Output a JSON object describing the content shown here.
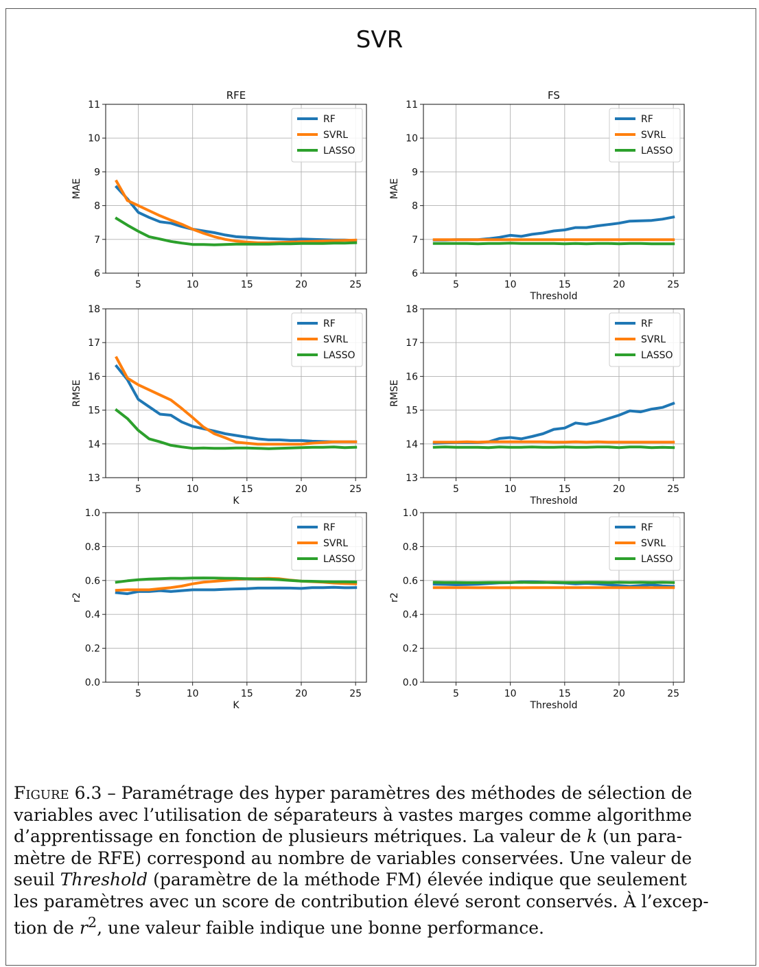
{
  "figure": {
    "title": "SVR",
    "caption": {
      "label": "Figure 6.3",
      "lines": [
        {
          "label": true,
          "text": " – Paramétrage des hyper paramètres des méthodes de sélection de"
        },
        {
          "text": "variables avec l’utilisation de séparateurs à vastes marges comme algorithme"
        },
        {
          "pre": "d’apprentissage en fonction de plusieurs métriques. La valeur de ",
          "ital": "k",
          "post": " (un para-"
        },
        {
          "text": "mètre de RFE) correspond au nombre de variables conservées. Une valeur de"
        },
        {
          "pre": "seuil ",
          "ital": "Threshold",
          "post": " (paramètre de la méthode FM) élevée indique que seulement"
        },
        {
          "text": "les paramètres avec un score de contribution élevé seront conservés. À l’excep-"
        },
        {
          "pre": "tion de ",
          "ital": "r",
          "sup": "2",
          "post": ", une valeur faible indique une bonne performance."
        }
      ]
    }
  },
  "colors": {
    "RF": "#1f77b4",
    "SVRL": "#ff7f0e",
    "LASSO": "#2ca02c"
  },
  "chart_data": [
    {
      "type": "line",
      "title": "RFE",
      "xlabel": "",
      "ylabel": "MAE",
      "xlim": [
        2,
        26
      ],
      "ylim": [
        6,
        11
      ],
      "xticks": [
        5,
        10,
        15,
        20,
        25
      ],
      "yticks": [
        6,
        7,
        8,
        9,
        10,
        11
      ],
      "ytick_labels": [
        "6",
        "7",
        "8",
        "9",
        "10",
        "11"
      ],
      "grid": true,
      "legend": "top-right",
      "x": [
        3,
        4,
        5,
        6,
        7,
        8,
        9,
        10,
        11,
        12,
        13,
        14,
        15,
        16,
        17,
        18,
        19,
        20,
        21,
        22,
        23,
        24,
        25
      ],
      "series": [
        {
          "name": "RF",
          "values": [
            8.55,
            8.2,
            7.8,
            7.65,
            7.52,
            7.48,
            7.38,
            7.3,
            7.25,
            7.2,
            7.13,
            7.08,
            7.06,
            7.04,
            7.02,
            7.01,
            7.0,
            7.01,
            7.0,
            6.99,
            6.98,
            6.98,
            6.97
          ]
        },
        {
          "name": "SVRL",
          "values": [
            8.72,
            8.15,
            8.0,
            7.85,
            7.7,
            7.57,
            7.45,
            7.3,
            7.18,
            7.08,
            7.0,
            6.95,
            6.92,
            6.9,
            6.9,
            6.91,
            6.92,
            6.93,
            6.94,
            6.95,
            6.96,
            6.97,
            6.98
          ]
        },
        {
          "name": "LASSO",
          "values": [
            7.62,
            7.42,
            7.24,
            7.08,
            7.01,
            6.94,
            6.89,
            6.85,
            6.85,
            6.84,
            6.85,
            6.86,
            6.86,
            6.86,
            6.86,
            6.87,
            6.87,
            6.88,
            6.88,
            6.88,
            6.89,
            6.89,
            6.9
          ]
        }
      ]
    },
    {
      "type": "line",
      "title": "FS",
      "xlabel": "Threshold",
      "ylabel": "MAE",
      "xlim": [
        2,
        26
      ],
      "ylim": [
        6,
        11
      ],
      "xticks": [
        5,
        10,
        15,
        20,
        25
      ],
      "yticks": [
        6,
        7,
        8,
        9,
        10,
        11
      ],
      "ytick_labels": [
        "6",
        "7",
        "8",
        "9",
        "10",
        "11"
      ],
      "grid": true,
      "legend": "top-right",
      "x": [
        3,
        4,
        5,
        6,
        7,
        8,
        9,
        10,
        11,
        12,
        13,
        14,
        15,
        16,
        17,
        18,
        19,
        20,
        21,
        22,
        23,
        24,
        25
      ],
      "series": [
        {
          "name": "RF",
          "values": [
            6.98,
            6.98,
            6.99,
            6.99,
            6.99,
            7.02,
            7.06,
            7.12,
            7.09,
            7.15,
            7.19,
            7.25,
            7.28,
            7.35,
            7.35,
            7.4,
            7.44,
            7.48,
            7.54,
            7.55,
            7.56,
            7.6,
            7.66
          ]
        },
        {
          "name": "SVRL",
          "values": [
            6.99,
            6.99,
            6.99,
            6.99,
            6.99,
            6.99,
            6.99,
            6.99,
            6.99,
            6.99,
            6.99,
            6.99,
            6.99,
            6.99,
            6.99,
            6.99,
            6.99,
            6.99,
            6.99,
            6.99,
            6.99,
            6.99,
            6.99
          ]
        },
        {
          "name": "LASSO",
          "values": [
            6.88,
            6.88,
            6.88,
            6.88,
            6.87,
            6.88,
            6.88,
            6.89,
            6.88,
            6.88,
            6.88,
            6.88,
            6.87,
            6.88,
            6.87,
            6.88,
            6.88,
            6.87,
            6.88,
            6.88,
            6.87,
            6.87,
            6.87
          ]
        }
      ]
    },
    {
      "type": "line",
      "title": "",
      "xlabel": "K",
      "ylabel": "RMSE",
      "xlim": [
        2,
        26
      ],
      "ylim": [
        13,
        18
      ],
      "xticks": [
        5,
        10,
        15,
        20,
        25
      ],
      "yticks": [
        13,
        14,
        15,
        16,
        17,
        18
      ],
      "ytick_labels": [
        "13",
        "14",
        "15",
        "16",
        "17",
        "18"
      ],
      "grid": true,
      "legend": "top-right",
      "x": [
        3,
        4,
        5,
        6,
        7,
        8,
        9,
        10,
        11,
        12,
        13,
        14,
        15,
        16,
        17,
        18,
        19,
        20,
        21,
        22,
        23,
        24,
        25
      ],
      "series": [
        {
          "name": "RF",
          "values": [
            16.3,
            15.9,
            15.32,
            15.1,
            14.88,
            14.85,
            14.65,
            14.52,
            14.45,
            14.38,
            14.3,
            14.25,
            14.2,
            14.15,
            14.12,
            14.12,
            14.1,
            14.1,
            14.08,
            14.07,
            14.06,
            14.06,
            14.06
          ]
        },
        {
          "name": "SVRL",
          "values": [
            16.55,
            15.95,
            15.75,
            15.6,
            15.45,
            15.3,
            15.05,
            14.78,
            14.5,
            14.3,
            14.18,
            14.05,
            14.02,
            13.99,
            13.99,
            13.99,
            13.99,
            13.99,
            14.02,
            14.04,
            14.06,
            14.06,
            14.06
          ]
        },
        {
          "name": "LASSO",
          "values": [
            15.0,
            14.75,
            14.4,
            14.15,
            14.06,
            13.96,
            13.91,
            13.87,
            13.88,
            13.87,
            13.87,
            13.88,
            13.88,
            13.87,
            13.86,
            13.87,
            13.88,
            13.89,
            13.9,
            13.9,
            13.91,
            13.89,
            13.9
          ]
        }
      ]
    },
    {
      "type": "line",
      "title": "",
      "xlabel": "Threshold",
      "ylabel": "RMSE",
      "xlim": [
        2,
        26
      ],
      "ylim": [
        13,
        18
      ],
      "xticks": [
        5,
        10,
        15,
        20,
        25
      ],
      "yticks": [
        13,
        14,
        15,
        16,
        17,
        18
      ],
      "ytick_labels": [
        "13",
        "14",
        "15",
        "16",
        "17",
        "18"
      ],
      "grid": true,
      "legend": "top-right",
      "x": [
        3,
        4,
        5,
        6,
        7,
        8,
        9,
        10,
        11,
        12,
        13,
        14,
        15,
        16,
        17,
        18,
        19,
        20,
        21,
        22,
        23,
        24,
        25
      ],
      "series": [
        {
          "name": "RF",
          "values": [
            14.02,
            14.03,
            14.04,
            14.04,
            14.04,
            14.06,
            14.16,
            14.19,
            14.15,
            14.22,
            14.3,
            14.43,
            14.47,
            14.62,
            14.58,
            14.65,
            14.75,
            14.85,
            14.98,
            14.95,
            15.03,
            15.08,
            15.2
          ]
        },
        {
          "name": "SVRL",
          "values": [
            14.05,
            14.05,
            14.05,
            14.06,
            14.05,
            14.06,
            14.06,
            14.06,
            14.06,
            14.06,
            14.06,
            14.05,
            14.05,
            14.06,
            14.05,
            14.06,
            14.05,
            14.05,
            14.05,
            14.05,
            14.05,
            14.05,
            14.05
          ]
        },
        {
          "name": "LASSO",
          "values": [
            13.9,
            13.91,
            13.9,
            13.9,
            13.9,
            13.89,
            13.91,
            13.9,
            13.9,
            13.91,
            13.9,
            13.9,
            13.91,
            13.9,
            13.9,
            13.91,
            13.91,
            13.89,
            13.91,
            13.91,
            13.89,
            13.9,
            13.89
          ]
        }
      ]
    },
    {
      "type": "line",
      "title": "",
      "xlabel": "K",
      "ylabel": "r2",
      "xlim": [
        2,
        26
      ],
      "ylim": [
        0,
        1
      ],
      "xticks": [
        5,
        10,
        15,
        20,
        25
      ],
      "yticks": [
        0,
        0.2,
        0.4,
        0.6,
        0.8,
        1.0
      ],
      "ytick_labels": [
        "0.0",
        "0.2",
        "0.4",
        "0.6",
        "0.8",
        "1.0"
      ],
      "grid": true,
      "legend": "top-right",
      "x": [
        3,
        4,
        5,
        6,
        7,
        8,
        9,
        10,
        11,
        12,
        13,
        14,
        15,
        16,
        17,
        18,
        19,
        20,
        21,
        22,
        23,
        24,
        25
      ],
      "series": [
        {
          "name": "RF",
          "values": [
            0.528,
            0.522,
            0.535,
            0.535,
            0.54,
            0.535,
            0.54,
            0.545,
            0.545,
            0.545,
            0.548,
            0.55,
            0.552,
            0.555,
            0.555,
            0.556,
            0.555,
            0.553,
            0.558,
            0.558,
            0.56,
            0.557,
            0.558
          ]
        },
        {
          "name": "SVRL",
          "values": [
            0.542,
            0.545,
            0.545,
            0.545,
            0.552,
            0.558,
            0.567,
            0.58,
            0.59,
            0.595,
            0.6,
            0.607,
            0.61,
            0.611,
            0.612,
            0.61,
            0.602,
            0.596,
            0.593,
            0.59,
            0.585,
            0.582,
            0.58
          ]
        },
        {
          "name": "LASSO",
          "values": [
            0.59,
            0.598,
            0.604,
            0.608,
            0.61,
            0.613,
            0.612,
            0.614,
            0.615,
            0.614,
            0.613,
            0.612,
            0.61,
            0.609,
            0.608,
            0.605,
            0.6,
            0.596,
            0.595,
            0.593,
            0.592,
            0.592,
            0.591
          ]
        }
      ]
    },
    {
      "type": "line",
      "title": "",
      "xlabel": "Threshold",
      "ylabel": "r2",
      "xlim": [
        2,
        26
      ],
      "ylim": [
        0,
        1
      ],
      "xticks": [
        5,
        10,
        15,
        20,
        25
      ],
      "yticks": [
        0,
        0.2,
        0.4,
        0.6,
        0.8,
        1.0
      ],
      "ytick_labels": [
        "0.0",
        "0.2",
        "0.4",
        "0.6",
        "0.8",
        "1.0"
      ],
      "grid": true,
      "legend": "top-right",
      "x": [
        3,
        4,
        5,
        6,
        7,
        8,
        9,
        10,
        11,
        12,
        13,
        14,
        15,
        16,
        17,
        18,
        19,
        20,
        21,
        22,
        23,
        24,
        25
      ],
      "series": [
        {
          "name": "RF",
          "values": [
            0.578,
            0.577,
            0.575,
            0.576,
            0.578,
            0.582,
            0.586,
            0.587,
            0.592,
            0.592,
            0.59,
            0.587,
            0.585,
            0.58,
            0.583,
            0.58,
            0.575,
            0.57,
            0.565,
            0.57,
            0.575,
            0.568,
            0.565
          ]
        },
        {
          "name": "SVRL",
          "values": [
            0.558,
            0.558,
            0.558,
            0.558,
            0.557,
            0.558,
            0.557,
            0.558,
            0.557,
            0.558,
            0.558,
            0.558,
            0.558,
            0.558,
            0.558,
            0.558,
            0.558,
            0.558,
            0.558,
            0.558,
            0.558,
            0.558,
            0.558
          ]
        },
        {
          "name": "LASSO",
          "values": [
            0.589,
            0.588,
            0.588,
            0.587,
            0.587,
            0.588,
            0.588,
            0.588,
            0.589,
            0.588,
            0.588,
            0.589,
            0.588,
            0.588,
            0.589,
            0.589,
            0.588,
            0.589,
            0.588,
            0.589,
            0.588,
            0.589,
            0.588
          ]
        }
      ]
    }
  ]
}
